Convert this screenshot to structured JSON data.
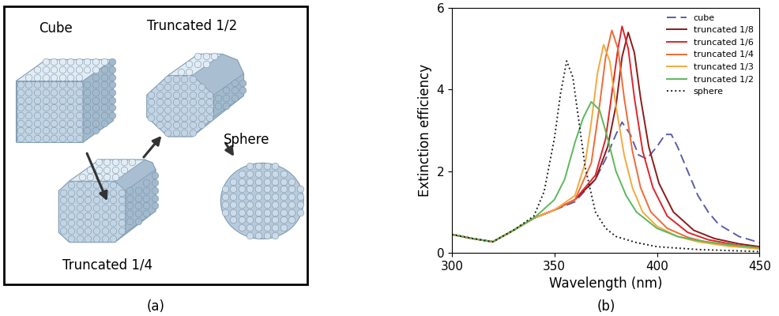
{
  "diagram": {
    "caption": "(a)",
    "nodes": [
      {
        "label": "Cube"
      },
      {
        "label": "Truncated 1/4"
      },
      {
        "label": "Truncated 1/2"
      },
      {
        "label": "Sphere"
      }
    ],
    "edges": [
      [
        0,
        1
      ],
      [
        1,
        2
      ],
      [
        2,
        3
      ]
    ]
  },
  "chart_data": {
    "type": "line",
    "caption": "(b)",
    "x_label": "Wavelength (nm)",
    "y_label": "Extinction efficiency",
    "xlim": [
      300,
      450
    ],
    "xticks": [
      300,
      350,
      400,
      450
    ],
    "ylim": [
      0,
      6
    ],
    "yticks": [
      0,
      2,
      4,
      6
    ],
    "legend": "upper right",
    "series": [
      {
        "name": "cube",
        "color": "#5a5ea8",
        "line_style": "dashed",
        "x": [
          300,
          310,
          320,
          330,
          340,
          350,
          360,
          370,
          375,
          380,
          383,
          387,
          391,
          395,
          400,
          404,
          407,
          410,
          415,
          420,
          425,
          430,
          440,
          450
        ],
        "values": [
          0.45,
          0.35,
          0.27,
          0.55,
          0.85,
          1.05,
          1.25,
          1.8,
          2.3,
          2.9,
          3.2,
          2.9,
          2.4,
          2.3,
          2.6,
          2.9,
          2.9,
          2.6,
          2.0,
          1.4,
          1.0,
          0.7,
          0.4,
          0.25
        ]
      },
      {
        "name": "truncated 1/8",
        "color": "#8b1a1a",
        "line_style": "solid",
        "x": [
          300,
          310,
          320,
          330,
          340,
          350,
          360,
          370,
          376,
          380,
          383,
          386,
          389,
          392,
          396,
          401,
          408,
          418,
          428,
          440,
          450
        ],
        "values": [
          0.45,
          0.35,
          0.27,
          0.55,
          0.85,
          1.05,
          1.3,
          1.8,
          2.6,
          3.6,
          4.8,
          5.4,
          4.9,
          3.8,
          2.6,
          1.7,
          1.0,
          0.55,
          0.35,
          0.22,
          0.15
        ]
      },
      {
        "name": "truncated 1/6",
        "color": "#e0242b",
        "line_style": "solid",
        "x": [
          300,
          310,
          320,
          330,
          340,
          350,
          360,
          370,
          375,
          378,
          381,
          383,
          386,
          389,
          393,
          398,
          405,
          415,
          425,
          440,
          450
        ],
        "values": [
          0.45,
          0.35,
          0.27,
          0.55,
          0.85,
          1.05,
          1.3,
          1.9,
          2.8,
          3.9,
          5.0,
          5.55,
          5.0,
          3.8,
          2.5,
          1.6,
          0.9,
          0.5,
          0.32,
          0.18,
          0.12
        ]
      },
      {
        "name": "truncated 1/4",
        "color": "#f06a35",
        "line_style": "solid",
        "x": [
          300,
          310,
          320,
          330,
          340,
          350,
          360,
          368,
          372,
          375,
          378,
          381,
          384,
          388,
          392,
          397,
          405,
          415,
          425,
          440,
          450
        ],
        "values": [
          0.45,
          0.35,
          0.27,
          0.55,
          0.85,
          1.05,
          1.3,
          2.2,
          3.6,
          4.8,
          5.45,
          5.0,
          3.8,
          2.5,
          1.6,
          1.0,
          0.6,
          0.38,
          0.25,
          0.15,
          0.1
        ]
      },
      {
        "name": "truncated 1/3",
        "color": "#f4a93c",
        "line_style": "solid",
        "x": [
          300,
          310,
          320,
          330,
          340,
          350,
          360,
          365,
          368,
          371,
          374,
          377,
          380,
          384,
          388,
          393,
          400,
          410,
          420,
          435,
          450
        ],
        "values": [
          0.45,
          0.35,
          0.27,
          0.55,
          0.85,
          1.05,
          1.4,
          2.2,
          3.2,
          4.4,
          5.1,
          4.7,
          3.6,
          2.4,
          1.6,
          1.0,
          0.65,
          0.4,
          0.27,
          0.16,
          0.1
        ]
      },
      {
        "name": "truncated 1/2",
        "color": "#5cb85c",
        "line_style": "solid",
        "x": [
          300,
          310,
          320,
          330,
          340,
          350,
          355,
          360,
          364,
          368,
          372,
          376,
          380,
          385,
          390,
          400,
          410,
          420,
          435,
          450
        ],
        "values": [
          0.45,
          0.35,
          0.27,
          0.55,
          0.85,
          1.3,
          1.8,
          2.7,
          3.3,
          3.7,
          3.5,
          2.8,
          2.0,
          1.4,
          1.0,
          0.6,
          0.4,
          0.3,
          0.2,
          0.12
        ]
      },
      {
        "name": "sphere",
        "color": "#222222",
        "line_style": "dotted",
        "x": [
          300,
          310,
          320,
          330,
          340,
          345,
          350,
          353,
          356,
          359,
          362,
          365,
          370,
          375,
          380,
          390,
          400,
          420,
          450
        ],
        "values": [
          0.45,
          0.35,
          0.27,
          0.55,
          0.9,
          1.5,
          2.8,
          3.9,
          4.7,
          4.3,
          3.2,
          2.1,
          1.0,
          0.6,
          0.4,
          0.25,
          0.15,
          0.08,
          0.03
        ]
      }
    ]
  }
}
